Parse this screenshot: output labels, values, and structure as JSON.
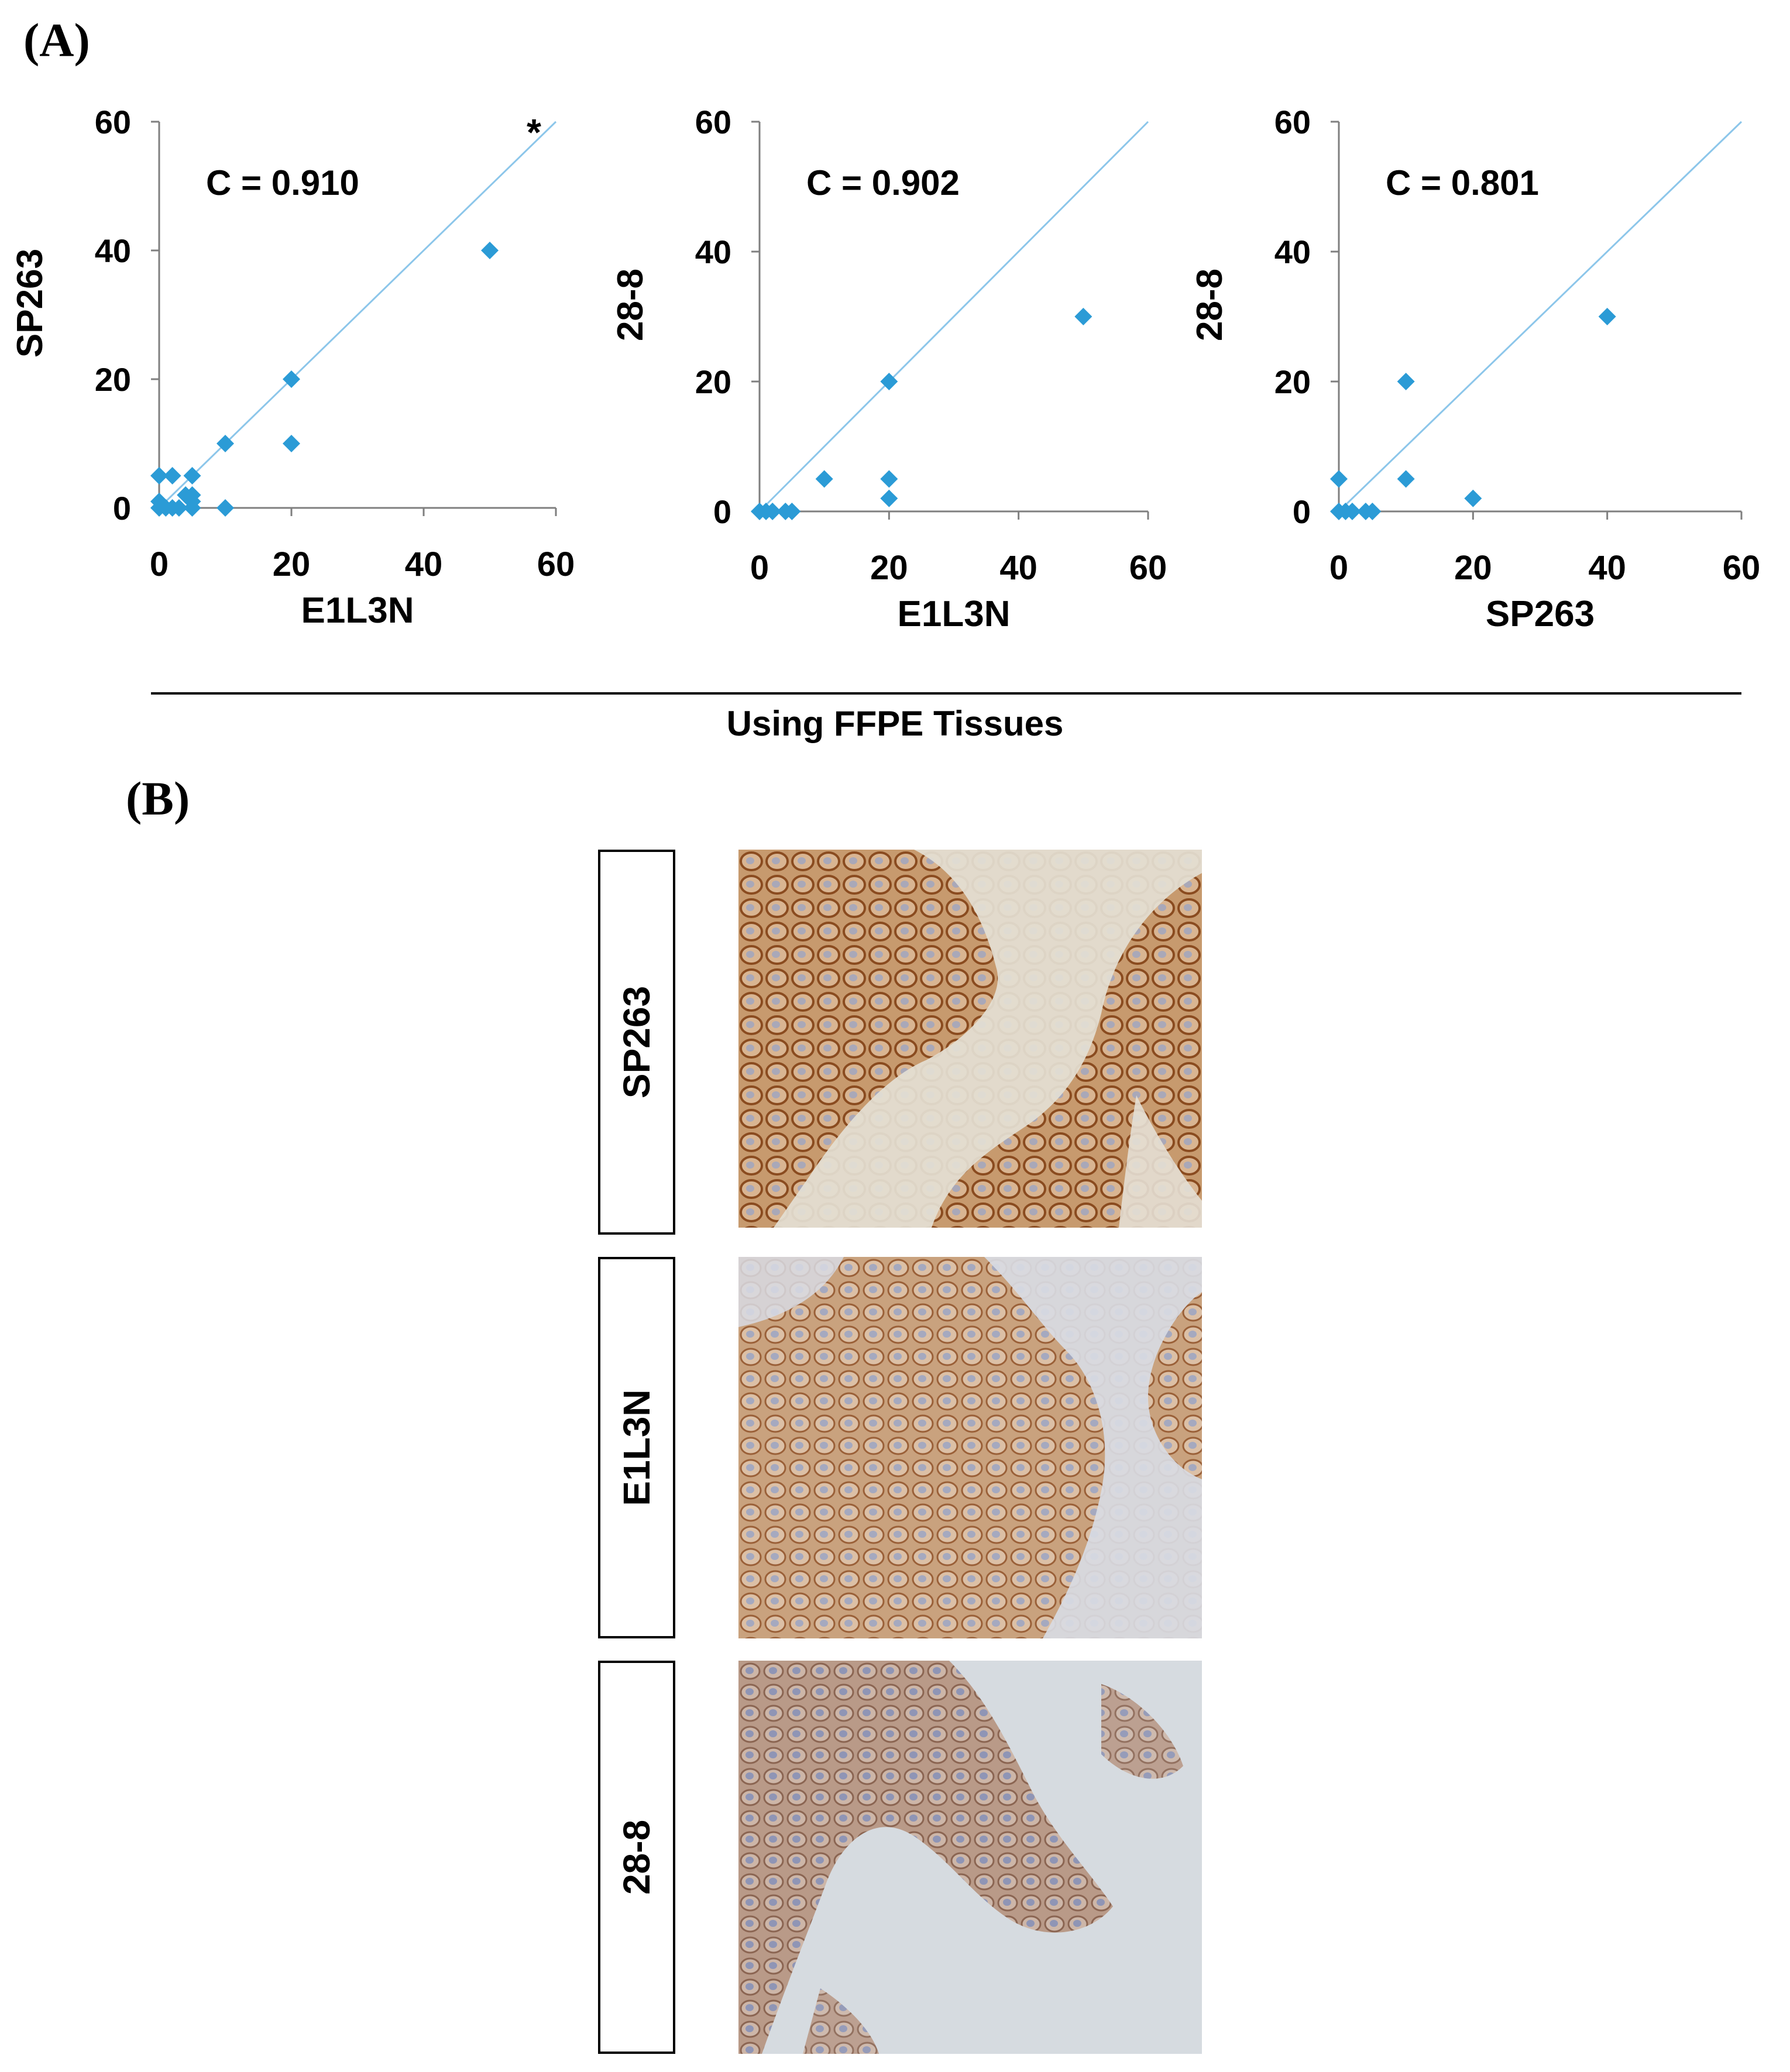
{
  "panel_a": {
    "label": "(A)"
  },
  "panel_b": {
    "label": "(B)"
  },
  "footnote": "Using FFPE Tissues",
  "colors": {
    "marker": "#2b9bd6",
    "line": "#8cc6ea",
    "axis": "#7f7f7f",
    "stain_brown": "#b0703a",
    "stroma": "#d9d4c8"
  },
  "chart_data": [
    {
      "type": "scatter",
      "title": "C = 0.910",
      "xlabel": "E1L3N",
      "ylabel": "SP263",
      "xlim": [
        0,
        60
      ],
      "ylim": [
        0,
        60
      ],
      "xticks": [
        0,
        20,
        40,
        60
      ],
      "yticks": [
        0,
        20,
        40,
        60
      ],
      "identity_line": true,
      "annotation": "*",
      "points": [
        [
          0,
          0
        ],
        [
          0,
          1
        ],
        [
          0,
          5
        ],
        [
          1,
          0
        ],
        [
          2,
          0
        ],
        [
          2,
          5
        ],
        [
          3,
          0
        ],
        [
          4,
          2
        ],
        [
          5,
          0
        ],
        [
          5,
          1
        ],
        [
          5,
          2
        ],
        [
          5,
          5
        ],
        [
          10,
          0
        ],
        [
          10,
          10
        ],
        [
          20,
          10
        ],
        [
          20,
          20
        ],
        [
          50,
          40
        ]
      ]
    },
    {
      "type": "scatter",
      "title": "C = 0.902",
      "xlabel": "E1L3N",
      "ylabel": "28-8",
      "xlim": [
        0,
        60
      ],
      "ylim": [
        0,
        60
      ],
      "xticks": [
        0,
        20,
        40,
        60
      ],
      "yticks": [
        0,
        20,
        40,
        60
      ],
      "identity_line": true,
      "annotation": "",
      "points": [
        [
          0,
          0
        ],
        [
          1,
          0
        ],
        [
          2,
          0
        ],
        [
          4,
          0
        ],
        [
          5,
          0
        ],
        [
          10,
          5
        ],
        [
          20,
          2
        ],
        [
          20,
          5
        ],
        [
          20,
          20
        ],
        [
          50,
          30
        ]
      ]
    },
    {
      "type": "scatter",
      "title": "C = 0.801",
      "xlabel": "SP263",
      "ylabel": "28-8",
      "xlim": [
        0,
        60
      ],
      "ylim": [
        0,
        60
      ],
      "xticks": [
        0,
        20,
        40,
        60
      ],
      "yticks": [
        0,
        20,
        40,
        60
      ],
      "identity_line": true,
      "annotation": "",
      "points": [
        [
          0,
          0
        ],
        [
          0,
          5
        ],
        [
          1,
          0
        ],
        [
          2,
          0
        ],
        [
          4,
          0
        ],
        [
          5,
          0
        ],
        [
          10,
          5
        ],
        [
          10,
          20
        ],
        [
          20,
          2
        ],
        [
          40,
          30
        ]
      ]
    }
  ],
  "ihc_panels": [
    {
      "label": "SP263",
      "stain": "strong",
      "icon": "ihc-micrograph"
    },
    {
      "label": "E1L3N",
      "stain": "moderate",
      "icon": "ihc-micrograph"
    },
    {
      "label": "28-8",
      "stain": "weak",
      "icon": "ihc-micrograph"
    }
  ]
}
